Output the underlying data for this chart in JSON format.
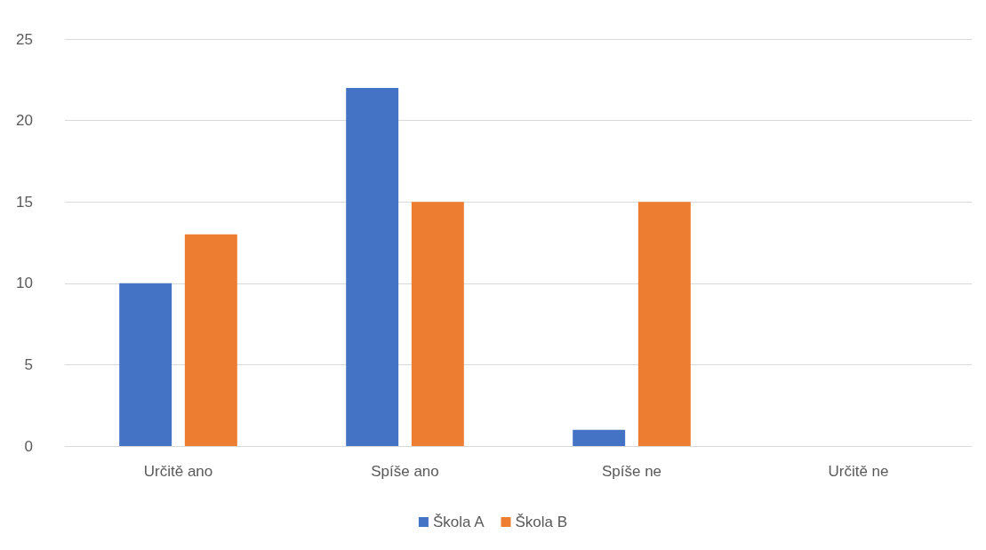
{
  "chart_data": {
    "type": "bar",
    "categories": [
      "Určitě ano",
      "Spíše ano",
      "Spíše ne",
      "Určitě ne"
    ],
    "series": [
      {
        "name": "Škola A",
        "color": "#4472c4",
        "values": [
          10,
          22,
          1,
          0
        ]
      },
      {
        "name": "Škola B",
        "color": "#ed7d31",
        "values": [
          13,
          15,
          15,
          0
        ]
      }
    ],
    "ylim": [
      0,
      25
    ],
    "yticks": [
      0,
      5,
      10,
      15,
      20,
      25
    ],
    "grid": "y",
    "legend": "bottom"
  }
}
